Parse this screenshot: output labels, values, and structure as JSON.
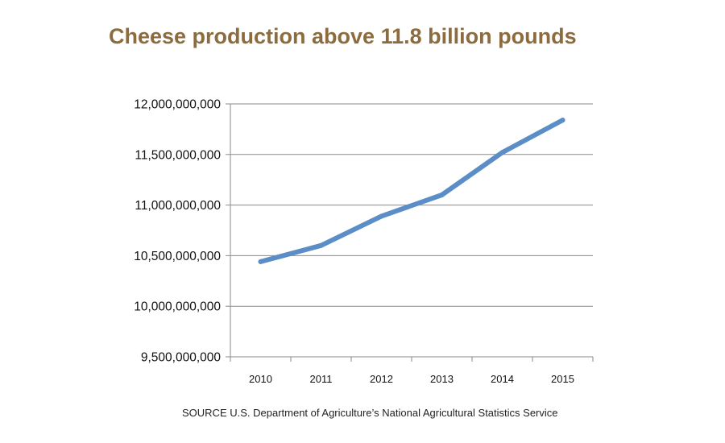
{
  "chart_data": {
    "type": "line",
    "title": "Cheese production above 11.8 billion pounds",
    "xlabel": "",
    "ylabel": "",
    "categories": [
      "2010",
      "2011",
      "2012",
      "2013",
      "2014",
      "2015"
    ],
    "series": [
      {
        "values": [
          10440000000,
          10600000000,
          10890000000,
          11100000000,
          11520000000,
          11840000000
        ],
        "color": "#5b8ec6"
      }
    ],
    "ylim": [
      9500000000,
      12000000000
    ],
    "yticks": [
      9500000000,
      10000000000,
      10500000000,
      11000000000,
      11500000000,
      12000000000
    ],
    "ytick_labels": [
      "9,500,000,000",
      "10,000,000,000",
      "10,500,000,000",
      "11,000,000,000",
      "11,500,000,000",
      "12,000,000,000"
    ],
    "grid": "horizontal",
    "legend": "none"
  },
  "source_note": "SOURCE U.S. Department of Agriculture’s National Agricultural Statistics Service"
}
